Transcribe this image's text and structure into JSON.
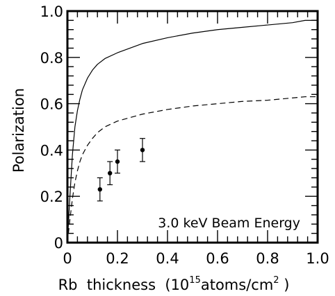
{
  "chart_data": {
    "type": "line",
    "title": "",
    "annotation": "3.0 keV Beam Energy",
    "xlabel": {
      "prefix": "Rb  thickness  (10",
      "exponent": "15",
      "middle": "atoms/cm",
      "squared": "2",
      "suffix": " )"
    },
    "ylabel": "Polarization",
    "xlim": [
      0,
      1.0
    ],
    "ylim": [
      0,
      1.0
    ],
    "x_ticks": [
      "0",
      "0.2",
      "0.4",
      "0.6",
      "0.8",
      "1.0"
    ],
    "y_ticks": [
      "0",
      "0.2",
      "0.4",
      "0.6",
      "0.8",
      "1.0"
    ],
    "grid": false,
    "series": [
      {
        "style": "solid",
        "x": [
          0,
          0.01,
          0.02,
          0.03,
          0.04,
          0.05,
          0.06,
          0.08,
          0.1,
          0.12,
          0.15,
          0.2,
          0.25,
          0.3,
          0.4,
          0.5,
          0.6,
          0.7,
          0.8,
          0.9,
          0.95,
          1.0
        ],
        "y": [
          0,
          0.2,
          0.38,
          0.5,
          0.57,
          0.62,
          0.66,
          0.71,
          0.745,
          0.77,
          0.795,
          0.82,
          0.84,
          0.86,
          0.885,
          0.905,
          0.92,
          0.93,
          0.94,
          0.95,
          0.96,
          0.96
        ]
      },
      {
        "style": "dashed",
        "x": [
          0,
          0.01,
          0.02,
          0.03,
          0.04,
          0.05,
          0.06,
          0.08,
          0.1,
          0.12,
          0.15,
          0.2,
          0.25,
          0.3,
          0.4,
          0.5,
          0.6,
          0.7,
          0.8,
          0.9,
          0.95,
          1.0
        ],
        "y": [
          0,
          0.1,
          0.19,
          0.26,
          0.31,
          0.35,
          0.38,
          0.42,
          0.45,
          0.475,
          0.5,
          0.525,
          0.54,
          0.555,
          0.575,
          0.59,
          0.6,
          0.61,
          0.615,
          0.625,
          0.63,
          0.63
        ]
      },
      {
        "style": "points",
        "x": [
          0.13,
          0.17,
          0.2,
          0.3
        ],
        "y": [
          0.23,
          0.3,
          0.35,
          0.4
        ],
        "yerr": [
          0.05,
          0.05,
          0.05,
          0.05
        ]
      }
    ]
  }
}
